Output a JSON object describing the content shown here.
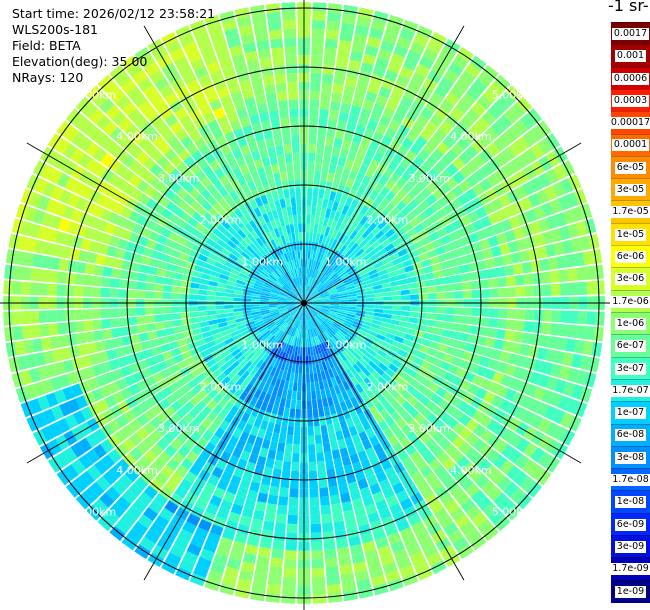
{
  "header": {
    "start_time": "Start time: 2026/02/12 23:58:21",
    "instrument": "WLS200s-181",
    "field": "Field: BETA",
    "elevation": "Elevation(deg): 35.00",
    "nrays": "NRays: 120"
  },
  "colorbar": {
    "units_label": "-1 sr-",
    "labels": [
      "0.0017",
      "0.001",
      "0.0006",
      "0.0003",
      "0.00017",
      "0.0001",
      "6e-05",
      "3e-05",
      "1.7e-05",
      "1e-05",
      "6e-06",
      "3e-06",
      "1.7e-06",
      "1e-06",
      "6e-07",
      "3e-07",
      "1.7e-07",
      "1e-07",
      "6e-08",
      "3e-08",
      "1.7e-08",
      "1e-08",
      "6e-09",
      "3e-09",
      "1.7e-09",
      "1e-09"
    ],
    "colors": [
      "#7a0000",
      "#a00000",
      "#d00000",
      "#ff1a00",
      "#ff4500",
      "#ff6a00",
      "#ff8c00",
      "#ffa800",
      "#ffc400",
      "#ffe000",
      "#ffff00",
      "#d7ff28",
      "#b2ff4c",
      "#8cff72",
      "#66ff98",
      "#40ffbf",
      "#20f0e0",
      "#00d0ff",
      "#00b0ff",
      "#0090ff",
      "#0068ff",
      "#0048ff",
      "#0028ff",
      "#0010e0",
      "#0000b8",
      "#00008a"
    ]
  },
  "chart_data": {
    "type": "heatmap",
    "title": "",
    "projection": "polar (PPI scan)",
    "field": "BETA",
    "elevation_deg": 35.0,
    "n_rays": 120,
    "range_rings_km": [
      1.0,
      2.0,
      3.0,
      4.0,
      5.0
    ],
    "range_ring_labels": [
      "1.00km",
      "2.00km",
      "3.00km",
      "4.00km",
      "5.00km"
    ],
    "max_range_km": 5.1,
    "radial_spokes_deg": [
      0,
      30,
      60,
      90,
      120,
      150,
      180,
      210,
      240,
      270,
      300,
      330
    ],
    "value_range": [
      1e-09,
      0.0017
    ],
    "colorscale": "log",
    "dominant_values_by_range": [
      {
        "range_km": [
          0.0,
          1.0
        ],
        "approx_beta": 1e-07
      },
      {
        "range_km": [
          1.0,
          2.0
        ],
        "approx_beta": 2e-07
      },
      {
        "range_km": [
          2.0,
          3.5
        ],
        "approx_beta": 5e-07
      },
      {
        "range_km": [
          3.5,
          5.1
        ],
        "approx_beta": 1e-06
      }
    ],
    "sector_notes": [
      {
        "sector": "north-west far range",
        "approx_beta": 2e-06
      },
      {
        "sector": "south near/mid range",
        "approx_beta": 5e-08
      },
      {
        "sector": "south-west far range",
        "approx_beta": 3e-08
      }
    ]
  }
}
